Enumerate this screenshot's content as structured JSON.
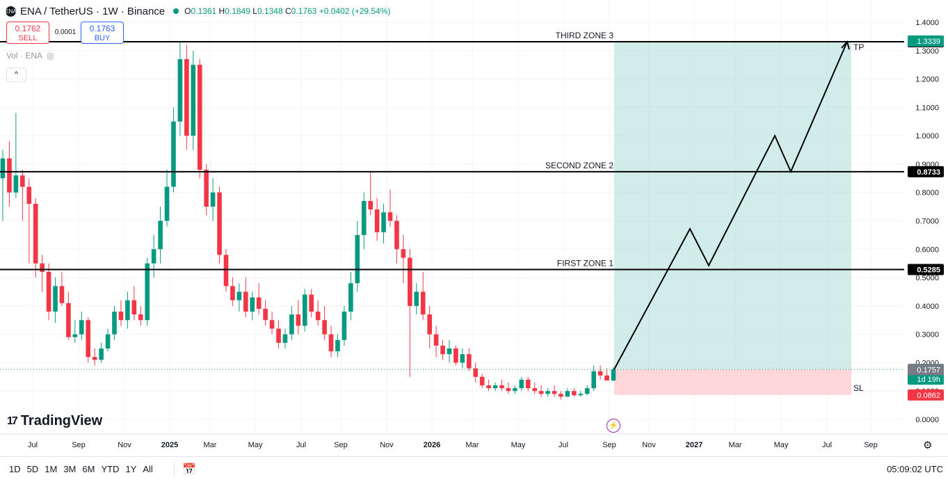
{
  "header": {
    "symbol": "ENA / TetherUS · 1W · Binance",
    "logo": "ENA",
    "open": "0.1361",
    "high": "0.1849",
    "low": "0.1348",
    "close": "0.1763",
    "change": "+0.0402 (+29.54%)",
    "o_label": "O",
    "h_label": "H",
    "l_label": "L",
    "c_label": "C"
  },
  "trade": {
    "sell_price": "0.1762",
    "sell_label": "SELL",
    "spread": "0.0001",
    "buy_price": "0.1763",
    "buy_label": "BUY"
  },
  "volume_label": "Vol · ENA",
  "collapse_label": "^",
  "branding": {
    "name": "TradingView",
    "mark": "17"
  },
  "time_ranges": [
    "1D",
    "5D",
    "1M",
    "3M",
    "6M",
    "YTD",
    "1Y",
    "All"
  ],
  "clock": "05:09:02 UTC",
  "colors": {
    "up": "#089981",
    "down": "#f23645",
    "target_fill": "#b2dfdb",
    "stop_fill": "#ffcdd2",
    "line": "#000000"
  },
  "chart_data": {
    "type": "candlestick",
    "y_axis": {
      "ticks": [
        "0.0000",
        "0.1000",
        "0.2000",
        "0.3000",
        "0.4000",
        "0.5000",
        "0.6000",
        "0.7000",
        "0.8000",
        "0.9000",
        "1.0000",
        "1.1000",
        "1.2000",
        "1.3000",
        "1.4000"
      ],
      "ylim": [
        0,
        1.4
      ]
    },
    "x_axis": {
      "ticks": [
        "Jul",
        "Sep",
        "Nov",
        "2025",
        "Mar",
        "May",
        "Jul",
        "Sep",
        "Nov",
        "2026",
        "Mar",
        "May",
        "Jul",
        "Sep",
        "Nov",
        "2027",
        "Mar",
        "May",
        "Jul",
        "Sep"
      ],
      "bold": [
        "2025",
        "2026",
        "2027"
      ]
    },
    "levels": [
      {
        "name": "THIRD ZONE 3",
        "value": 1.3313,
        "label": "1.3313"
      },
      {
        "name": "SECOND ZONE 2",
        "value": 0.8733,
        "label": "0.8733"
      },
      {
        "name": "FIRST ZONE 1",
        "value": 0.5285,
        "label": "0.5285"
      }
    ],
    "price_labels": [
      {
        "text": "1.3339",
        "value": 1.3339,
        "color": "#089981"
      },
      {
        "text": "0.1763",
        "value": 0.1763,
        "color": "#089981",
        "sub": "1d 19h"
      },
      {
        "text": "0.1757",
        "value": 0.1757,
        "color": "#787b86"
      },
      {
        "text": "0.0862",
        "value": 0.0862,
        "color": "#f23645"
      }
    ],
    "position": {
      "entry": 0.1763,
      "target": 1.3313,
      "stop": 0.0862,
      "tp_label": "TP",
      "sl_label": "SL"
    },
    "projection_path": [
      0.1763,
      0.6718,
      0.5425,
      1.0,
      0.8733,
      1.3313
    ],
    "current_price": 0.1763,
    "candles": [
      [
        0.85,
        0.95,
        0.7,
        0.92
      ],
      [
        0.92,
        0.98,
        0.75,
        0.8
      ],
      [
        0.8,
        1.08,
        0.78,
        0.86
      ],
      [
        0.86,
        0.88,
        0.7,
        0.82
      ],
      [
        0.82,
        0.85,
        0.55,
        0.76
      ],
      [
        0.76,
        0.78,
        0.5,
        0.55
      ],
      [
        0.55,
        0.58,
        0.45,
        0.52
      ],
      [
        0.52,
        0.55,
        0.35,
        0.38
      ],
      [
        0.38,
        0.5,
        0.34,
        0.47
      ],
      [
        0.47,
        0.52,
        0.4,
        0.41
      ],
      [
        0.41,
        0.45,
        0.28,
        0.29
      ],
      [
        0.29,
        0.35,
        0.27,
        0.3
      ],
      [
        0.3,
        0.38,
        0.28,
        0.35
      ],
      [
        0.35,
        0.36,
        0.2,
        0.22
      ],
      [
        0.22,
        0.25,
        0.19,
        0.21
      ],
      [
        0.21,
        0.27,
        0.2,
        0.25
      ],
      [
        0.25,
        0.32,
        0.24,
        0.3
      ],
      [
        0.3,
        0.4,
        0.28,
        0.38
      ],
      [
        0.38,
        0.42,
        0.33,
        0.35
      ],
      [
        0.35,
        0.45,
        0.32,
        0.42
      ],
      [
        0.42,
        0.47,
        0.35,
        0.37
      ],
      [
        0.37,
        0.4,
        0.33,
        0.35
      ],
      [
        0.35,
        0.57,
        0.33,
        0.55
      ],
      [
        0.55,
        0.65,
        0.5,
        0.6
      ],
      [
        0.6,
        0.75,
        0.55,
        0.7
      ],
      [
        0.7,
        0.88,
        0.68,
        0.82
      ],
      [
        0.82,
        1.1,
        0.8,
        1.05
      ],
      [
        1.05,
        1.33,
        1.0,
        1.27
      ],
      [
        1.27,
        1.32,
        0.95,
        1.0
      ],
      [
        1.0,
        1.3,
        0.95,
        1.25
      ],
      [
        1.25,
        1.27,
        0.85,
        0.88
      ],
      [
        0.88,
        0.9,
        0.72,
        0.75
      ],
      [
        0.75,
        0.85,
        0.7,
        0.8
      ],
      [
        0.8,
        0.82,
        0.55,
        0.58
      ],
      [
        0.58,
        0.6,
        0.45,
        0.47
      ],
      [
        0.47,
        0.5,
        0.4,
        0.42
      ],
      [
        0.42,
        0.48,
        0.38,
        0.45
      ],
      [
        0.45,
        0.5,
        0.36,
        0.38
      ],
      [
        0.38,
        0.45,
        0.35,
        0.43
      ],
      [
        0.43,
        0.48,
        0.37,
        0.39
      ],
      [
        0.39,
        0.42,
        0.33,
        0.35
      ],
      [
        0.35,
        0.38,
        0.3,
        0.32
      ],
      [
        0.32,
        0.35,
        0.25,
        0.27
      ],
      [
        0.27,
        0.32,
        0.25,
        0.3
      ],
      [
        0.3,
        0.4,
        0.28,
        0.37
      ],
      [
        0.37,
        0.42,
        0.3,
        0.33
      ],
      [
        0.33,
        0.46,
        0.31,
        0.44
      ],
      [
        0.44,
        0.46,
        0.36,
        0.38
      ],
      [
        0.38,
        0.42,
        0.33,
        0.35
      ],
      [
        0.35,
        0.4,
        0.28,
        0.3
      ],
      [
        0.3,
        0.33,
        0.22,
        0.24
      ],
      [
        0.24,
        0.3,
        0.22,
        0.28
      ],
      [
        0.28,
        0.4,
        0.26,
        0.38
      ],
      [
        0.38,
        0.52,
        0.35,
        0.48
      ],
      [
        0.48,
        0.7,
        0.45,
        0.65
      ],
      [
        0.65,
        0.8,
        0.6,
        0.77
      ],
      [
        0.77,
        0.87,
        0.72,
        0.74
      ],
      [
        0.74,
        0.78,
        0.63,
        0.66
      ],
      [
        0.66,
        0.76,
        0.62,
        0.73
      ],
      [
        0.73,
        0.81,
        0.68,
        0.7
      ],
      [
        0.7,
        0.72,
        0.55,
        0.6
      ],
      [
        0.6,
        0.65,
        0.48,
        0.57
      ],
      [
        0.57,
        0.6,
        0.15,
        0.4
      ],
      [
        0.4,
        0.48,
        0.37,
        0.45
      ],
      [
        0.45,
        0.52,
        0.35,
        0.37
      ],
      [
        0.37,
        0.4,
        0.25,
        0.3
      ],
      [
        0.3,
        0.33,
        0.22,
        0.26
      ],
      [
        0.26,
        0.28,
        0.21,
        0.23
      ],
      [
        0.23,
        0.28,
        0.2,
        0.25
      ],
      [
        0.25,
        0.26,
        0.19,
        0.2
      ],
      [
        0.2,
        0.25,
        0.18,
        0.23
      ],
      [
        0.23,
        0.25,
        0.17,
        0.18
      ],
      [
        0.18,
        0.2,
        0.13,
        0.15
      ],
      [
        0.15,
        0.16,
        0.11,
        0.12
      ],
      [
        0.12,
        0.14,
        0.1,
        0.11
      ],
      [
        0.11,
        0.13,
        0.1,
        0.12
      ],
      [
        0.12,
        0.14,
        0.1,
        0.11
      ],
      [
        0.11,
        0.13,
        0.09,
        0.1
      ],
      [
        0.1,
        0.12,
        0.09,
        0.11
      ],
      [
        0.11,
        0.15,
        0.1,
        0.14
      ],
      [
        0.14,
        0.15,
        0.1,
        0.11
      ],
      [
        0.11,
        0.13,
        0.09,
        0.1
      ],
      [
        0.1,
        0.12,
        0.08,
        0.09
      ],
      [
        0.09,
        0.11,
        0.08,
        0.1
      ],
      [
        0.1,
        0.12,
        0.08,
        0.09
      ],
      [
        0.09,
        0.1,
        0.07,
        0.08
      ],
      [
        0.08,
        0.11,
        0.08,
        0.1
      ],
      [
        0.1,
        0.11,
        0.08,
        0.085
      ],
      [
        0.085,
        0.1,
        0.08,
        0.09
      ],
      [
        0.09,
        0.12,
        0.085,
        0.11
      ],
      [
        0.11,
        0.19,
        0.1,
        0.17
      ],
      [
        0.17,
        0.19,
        0.14,
        0.155
      ],
      [
        0.155,
        0.18,
        0.14,
        0.137
      ],
      [
        0.137,
        0.1849,
        0.1348,
        0.1763
      ]
    ]
  }
}
